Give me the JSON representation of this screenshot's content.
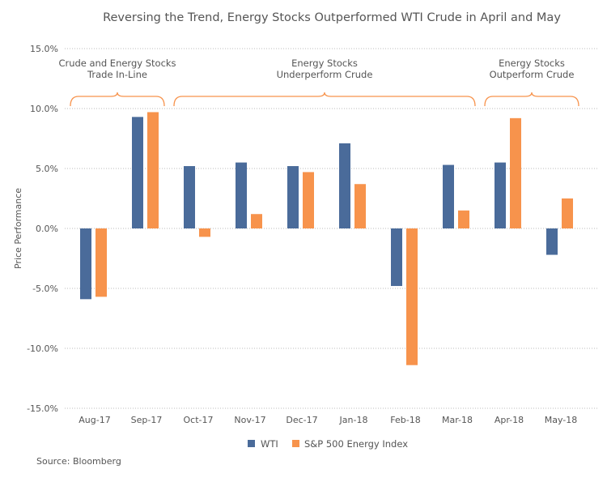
{
  "chart_data": {
    "type": "bar",
    "title": "Reversing the Trend, Energy Stocks Outperformed WTI Crude in April and May",
    "xlabel": "",
    "ylabel": "Price Performance",
    "ylim": [
      -15,
      15
    ],
    "yticks": [
      15,
      10,
      5,
      0,
      -5,
      -10,
      -15
    ],
    "ytick_labels": [
      "15.0%",
      "10.0%",
      "5.0%",
      "0.0%",
      "-5.0%",
      "-10.0%",
      "-15.0%"
    ],
    "grid": true,
    "categories": [
      "Aug-17",
      "Sep-17",
      "Oct-17",
      "Nov-17",
      "Dec-17",
      "Jan-18",
      "Feb-18",
      "Mar-18",
      "Apr-18",
      "May-18"
    ],
    "series": [
      {
        "name": "WTI",
        "color": "#4a6b9a",
        "values": [
          -5.9,
          9.3,
          5.2,
          5.5,
          5.2,
          7.1,
          -4.8,
          5.3,
          5.5,
          -2.2
        ]
      },
      {
        "name": "S&P 500 Energy Index",
        "color": "#f7934c",
        "values": [
          -5.7,
          9.7,
          -0.7,
          1.2,
          4.7,
          3.7,
          -11.4,
          1.5,
          9.2,
          2.5
        ]
      }
    ],
    "legend_position": "bottom",
    "annotations": [
      {
        "lines": [
          "Crude and Energy Stocks",
          "Trade In-Line"
        ],
        "from": "Aug-17",
        "to": "Sep-17"
      },
      {
        "lines": [
          "Energy Stocks",
          "Underperform Crude"
        ],
        "from": "Oct-17",
        "to": "Mar-18"
      },
      {
        "lines": [
          "Energy Stocks",
          "Outperform Crude"
        ],
        "from": "Apr-18",
        "to": "May-18"
      }
    ],
    "source": "Source: Bloomberg"
  }
}
